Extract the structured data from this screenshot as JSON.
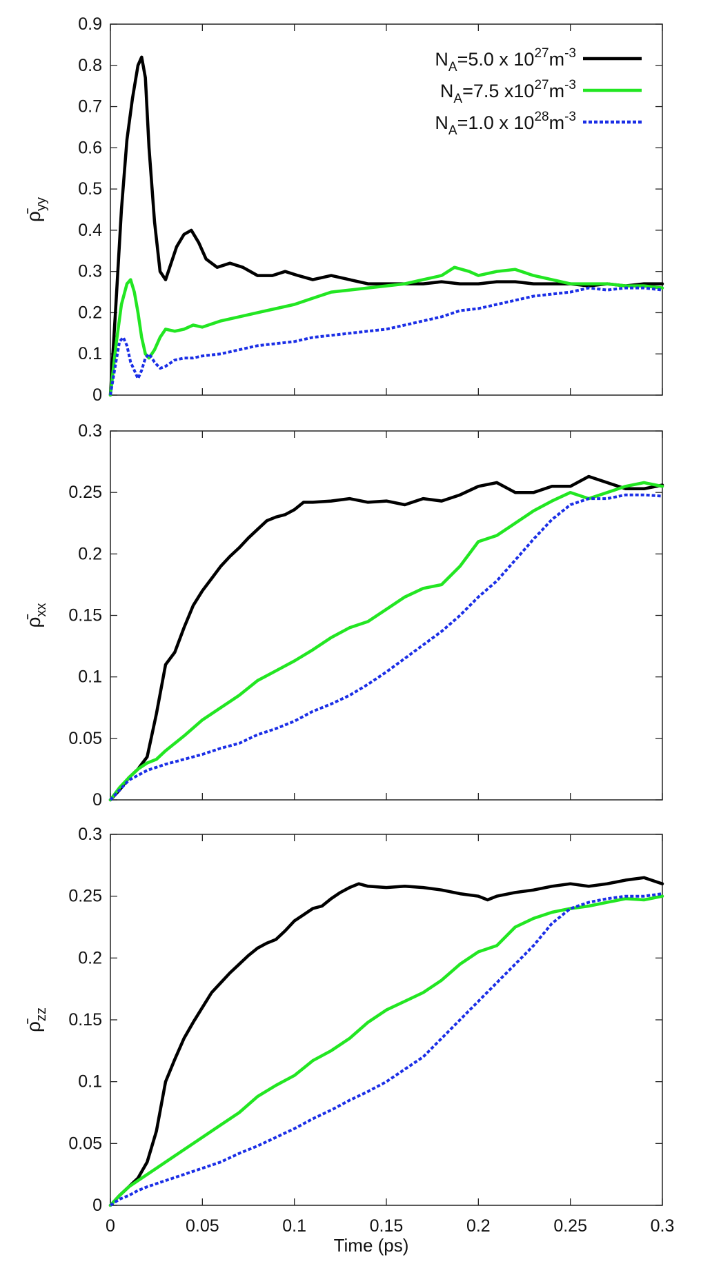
{
  "figure": {
    "xlabel": "Time (ps)"
  },
  "legend": [
    {
      "prefix": "N",
      "sub": "A",
      "mid": "=5.0 x 10",
      "sup": "27",
      "unit": "m",
      "unit_sup": "-3"
    },
    {
      "prefix": "N",
      "sub": "A",
      "mid": "=7.5 x10",
      "sup": "27",
      "unit": "m",
      "unit_sup": "-3"
    },
    {
      "prefix": "N",
      "sub": "A",
      "mid": "=1.0 x 10",
      "sup": "28",
      "unit": "m",
      "unit_sup": "-3"
    }
  ],
  "chart_data": [
    {
      "type": "line",
      "ylabel": "ρ̄yy",
      "ylabel_main": "ρ̄",
      "ylabel_sub": "yy",
      "xlim": [
        0,
        0.3
      ],
      "ylim": [
        0,
        0.9
      ],
      "xticks": [
        0,
        0.05,
        0.1,
        0.15,
        0.2,
        0.25,
        0.3
      ],
      "yticks": [
        "0",
        "0.1",
        "0.2",
        "0.3",
        "0.4",
        "0.5",
        "0.6",
        "0.7",
        "0.8",
        "0.9"
      ],
      "ytick_values": [
        0,
        0.1,
        0.2,
        0.3,
        0.4,
        0.5,
        0.6,
        0.7,
        0.8,
        0.9
      ],
      "legend": "top-right",
      "grid": false,
      "series": [
        {
          "name": "NA=5.0 x 10^27 m^-3",
          "color": "#000000",
          "dash": "solid",
          "x": [
            0,
            0.003,
            0.006,
            0.009,
            0.012,
            0.015,
            0.017,
            0.019,
            0.021,
            0.024,
            0.027,
            0.03,
            0.033,
            0.036,
            0.04,
            0.044,
            0.048,
            0.052,
            0.058,
            0.065,
            0.072,
            0.08,
            0.088,
            0.095,
            0.102,
            0.11,
            0.12,
            0.13,
            0.14,
            0.15,
            0.16,
            0.17,
            0.18,
            0.19,
            0.2,
            0.21,
            0.22,
            0.23,
            0.24,
            0.25,
            0.26,
            0.27,
            0.28,
            0.29,
            0.3
          ],
          "y": [
            0,
            0.22,
            0.45,
            0.62,
            0.72,
            0.8,
            0.82,
            0.77,
            0.6,
            0.42,
            0.3,
            0.28,
            0.32,
            0.36,
            0.39,
            0.4,
            0.37,
            0.33,
            0.31,
            0.32,
            0.31,
            0.29,
            0.29,
            0.3,
            0.29,
            0.28,
            0.29,
            0.28,
            0.27,
            0.27,
            0.27,
            0.27,
            0.275,
            0.27,
            0.27,
            0.275,
            0.275,
            0.27,
            0.27,
            0.27,
            0.265,
            0.27,
            0.265,
            0.27,
            0.27
          ]
        },
        {
          "name": "NA=7.5 x10^27 m^-3",
          "color": "#22e622",
          "dash": "solid",
          "x": [
            0,
            0.003,
            0.006,
            0.009,
            0.011,
            0.013,
            0.015,
            0.017,
            0.019,
            0.021,
            0.024,
            0.027,
            0.03,
            0.035,
            0.04,
            0.045,
            0.05,
            0.06,
            0.07,
            0.08,
            0.09,
            0.1,
            0.11,
            0.12,
            0.13,
            0.14,
            0.15,
            0.16,
            0.17,
            0.18,
            0.187,
            0.195,
            0.2,
            0.21,
            0.22,
            0.23,
            0.24,
            0.25,
            0.26,
            0.27,
            0.28,
            0.29,
            0.3
          ],
          "y": [
            0,
            0.12,
            0.22,
            0.27,
            0.28,
            0.25,
            0.2,
            0.14,
            0.1,
            0.09,
            0.11,
            0.14,
            0.16,
            0.155,
            0.16,
            0.17,
            0.165,
            0.18,
            0.19,
            0.2,
            0.21,
            0.22,
            0.235,
            0.25,
            0.255,
            0.26,
            0.265,
            0.27,
            0.28,
            0.29,
            0.31,
            0.3,
            0.29,
            0.3,
            0.305,
            0.29,
            0.28,
            0.27,
            0.27,
            0.27,
            0.265,
            0.265,
            0.26
          ]
        },
        {
          "name": "NA=1.0 x 10^28 m^-3",
          "color": "#1a2ee6",
          "dash": "dashed",
          "x": [
            0,
            0.003,
            0.005,
            0.007,
            0.009,
            0.011,
            0.013,
            0.015,
            0.017,
            0.019,
            0.021,
            0.024,
            0.027,
            0.03,
            0.035,
            0.04,
            0.045,
            0.05,
            0.06,
            0.07,
            0.08,
            0.09,
            0.1,
            0.11,
            0.12,
            0.13,
            0.14,
            0.15,
            0.16,
            0.17,
            0.18,
            0.19,
            0.2,
            0.21,
            0.22,
            0.23,
            0.24,
            0.25,
            0.26,
            0.27,
            0.28,
            0.29,
            0.3
          ],
          "y": [
            0,
            0.08,
            0.13,
            0.14,
            0.12,
            0.08,
            0.06,
            0.04,
            0.06,
            0.09,
            0.1,
            0.08,
            0.065,
            0.07,
            0.085,
            0.09,
            0.09,
            0.095,
            0.1,
            0.11,
            0.12,
            0.125,
            0.13,
            0.14,
            0.145,
            0.15,
            0.155,
            0.16,
            0.17,
            0.18,
            0.19,
            0.205,
            0.21,
            0.22,
            0.23,
            0.24,
            0.245,
            0.25,
            0.26,
            0.255,
            0.26,
            0.26,
            0.255
          ]
        }
      ]
    },
    {
      "type": "line",
      "ylabel": "ρ̄xx",
      "ylabel_main": "ρ̄",
      "ylabel_sub": "xx",
      "xlim": [
        0,
        0.3
      ],
      "ylim": [
        0,
        0.3
      ],
      "xticks": [
        0,
        0.05,
        0.1,
        0.15,
        0.2,
        0.25,
        0.3
      ],
      "yticks": [
        "0",
        "0.05",
        "0.1",
        "0.15",
        "0.2",
        "0.25",
        "0.3"
      ],
      "ytick_values": [
        0,
        0.05,
        0.1,
        0.15,
        0.2,
        0.25,
        0.3
      ],
      "grid": false,
      "series": [
        {
          "name": "NA=5.0 x 10^27 m^-3",
          "color": "#000000",
          "dash": "solid",
          "x": [
            0,
            0.005,
            0.01,
            0.015,
            0.02,
            0.025,
            0.03,
            0.035,
            0.04,
            0.045,
            0.05,
            0.055,
            0.06,
            0.065,
            0.07,
            0.075,
            0.08,
            0.085,
            0.09,
            0.095,
            0.1,
            0.105,
            0.11,
            0.12,
            0.13,
            0.14,
            0.15,
            0.16,
            0.17,
            0.18,
            0.19,
            0.2,
            0.21,
            0.22,
            0.23,
            0.24,
            0.25,
            0.26,
            0.27,
            0.28,
            0.29,
            0.3
          ],
          "y": [
            0,
            0.008,
            0.018,
            0.025,
            0.035,
            0.07,
            0.11,
            0.12,
            0.14,
            0.158,
            0.17,
            0.18,
            0.19,
            0.198,
            0.205,
            0.213,
            0.22,
            0.227,
            0.23,
            0.232,
            0.236,
            0.242,
            0.242,
            0.243,
            0.245,
            0.242,
            0.243,
            0.24,
            0.245,
            0.243,
            0.248,
            0.255,
            0.258,
            0.25,
            0.25,
            0.255,
            0.255,
            0.263,
            0.258,
            0.253,
            0.253,
            0.256
          ]
        },
        {
          "name": "NA=7.5 x10^27 m^-3",
          "color": "#22e622",
          "dash": "solid",
          "x": [
            0,
            0.005,
            0.01,
            0.015,
            0.02,
            0.025,
            0.03,
            0.04,
            0.05,
            0.06,
            0.07,
            0.08,
            0.09,
            0.1,
            0.11,
            0.12,
            0.13,
            0.14,
            0.15,
            0.16,
            0.17,
            0.18,
            0.19,
            0.2,
            0.21,
            0.22,
            0.23,
            0.24,
            0.25,
            0.26,
            0.27,
            0.28,
            0.29,
            0.3
          ],
          "y": [
            0,
            0.01,
            0.018,
            0.025,
            0.03,
            0.033,
            0.04,
            0.052,
            0.065,
            0.075,
            0.085,
            0.097,
            0.105,
            0.113,
            0.122,
            0.132,
            0.14,
            0.145,
            0.155,
            0.165,
            0.172,
            0.175,
            0.19,
            0.21,
            0.215,
            0.225,
            0.235,
            0.243,
            0.25,
            0.245,
            0.25,
            0.255,
            0.258,
            0.255
          ]
        },
        {
          "name": "NA=1.0 x 10^28 m^-3",
          "color": "#1a2ee6",
          "dash": "dashed",
          "x": [
            0,
            0.005,
            0.01,
            0.015,
            0.02,
            0.03,
            0.04,
            0.05,
            0.06,
            0.07,
            0.08,
            0.09,
            0.1,
            0.11,
            0.12,
            0.13,
            0.14,
            0.15,
            0.16,
            0.17,
            0.18,
            0.19,
            0.2,
            0.21,
            0.22,
            0.23,
            0.24,
            0.25,
            0.26,
            0.27,
            0.28,
            0.29,
            0.3
          ],
          "y": [
            0,
            0.008,
            0.016,
            0.02,
            0.024,
            0.029,
            0.033,
            0.037,
            0.042,
            0.046,
            0.053,
            0.058,
            0.064,
            0.072,
            0.078,
            0.085,
            0.094,
            0.104,
            0.115,
            0.126,
            0.137,
            0.15,
            0.165,
            0.178,
            0.195,
            0.212,
            0.228,
            0.24,
            0.245,
            0.245,
            0.248,
            0.248,
            0.247
          ]
        }
      ]
    },
    {
      "type": "line",
      "ylabel": "ρ̄zz",
      "ylabel_main": "ρ̄",
      "ylabel_sub": "zz",
      "xlabel": "Time (ps)",
      "xlim": [
        0,
        0.3
      ],
      "ylim": [
        0,
        0.3
      ],
      "xticks": [
        0,
        0.05,
        0.1,
        0.15,
        0.2,
        0.25,
        0.3
      ],
      "xticklabels": [
        "0",
        "0.05",
        "0.1",
        "0.15",
        "0.2",
        "0.25",
        "0.3"
      ],
      "yticks": [
        "0",
        "0.05",
        "0.1",
        "0.15",
        "0.2",
        "0.25",
        "0.3"
      ],
      "ytick_values": [
        0,
        0.05,
        0.1,
        0.15,
        0.2,
        0.25,
        0.3
      ],
      "grid": false,
      "series": [
        {
          "name": "NA=5.0 x 10^27 m^-3",
          "color": "#000000",
          "dash": "solid",
          "x": [
            0,
            0.005,
            0.01,
            0.015,
            0.02,
            0.025,
            0.03,
            0.035,
            0.04,
            0.045,
            0.05,
            0.055,
            0.06,
            0.065,
            0.07,
            0.075,
            0.08,
            0.085,
            0.09,
            0.095,
            0.1,
            0.105,
            0.11,
            0.115,
            0.12,
            0.125,
            0.13,
            0.135,
            0.14,
            0.15,
            0.16,
            0.17,
            0.18,
            0.19,
            0.2,
            0.205,
            0.21,
            0.22,
            0.23,
            0.24,
            0.25,
            0.26,
            0.27,
            0.28,
            0.29,
            0.3
          ],
          "y": [
            0,
            0.008,
            0.015,
            0.022,
            0.035,
            0.06,
            0.1,
            0.118,
            0.135,
            0.148,
            0.16,
            0.172,
            0.18,
            0.188,
            0.195,
            0.202,
            0.208,
            0.212,
            0.215,
            0.222,
            0.23,
            0.235,
            0.24,
            0.242,
            0.248,
            0.253,
            0.257,
            0.26,
            0.258,
            0.257,
            0.258,
            0.257,
            0.255,
            0.252,
            0.25,
            0.247,
            0.25,
            0.253,
            0.255,
            0.258,
            0.26,
            0.258,
            0.26,
            0.263,
            0.265,
            0.26
          ]
        },
        {
          "name": "NA=7.5 x10^27 m^-3",
          "color": "#22e622",
          "dash": "solid",
          "x": [
            0,
            0.005,
            0.01,
            0.015,
            0.02,
            0.025,
            0.03,
            0.04,
            0.05,
            0.06,
            0.07,
            0.08,
            0.09,
            0.1,
            0.11,
            0.12,
            0.13,
            0.14,
            0.15,
            0.16,
            0.17,
            0.18,
            0.19,
            0.2,
            0.21,
            0.22,
            0.23,
            0.24,
            0.25,
            0.26,
            0.27,
            0.28,
            0.29,
            0.3
          ],
          "y": [
            0,
            0.008,
            0.015,
            0.02,
            0.025,
            0.03,
            0.035,
            0.045,
            0.055,
            0.065,
            0.075,
            0.088,
            0.097,
            0.105,
            0.117,
            0.125,
            0.135,
            0.148,
            0.158,
            0.165,
            0.172,
            0.182,
            0.195,
            0.205,
            0.21,
            0.225,
            0.232,
            0.237,
            0.24,
            0.242,
            0.245,
            0.248,
            0.247,
            0.25
          ]
        },
        {
          "name": "NA=1.0 x 10^28 m^-3",
          "color": "#1a2ee6",
          "dash": "dashed",
          "x": [
            0,
            0.005,
            0.01,
            0.015,
            0.02,
            0.03,
            0.04,
            0.05,
            0.06,
            0.07,
            0.08,
            0.09,
            0.1,
            0.11,
            0.12,
            0.13,
            0.14,
            0.15,
            0.16,
            0.17,
            0.18,
            0.19,
            0.2,
            0.21,
            0.22,
            0.23,
            0.24,
            0.25,
            0.26,
            0.27,
            0.28,
            0.29,
            0.3
          ],
          "y": [
            0,
            0.005,
            0.008,
            0.012,
            0.015,
            0.02,
            0.025,
            0.03,
            0.035,
            0.042,
            0.048,
            0.055,
            0.062,
            0.07,
            0.077,
            0.085,
            0.092,
            0.1,
            0.11,
            0.12,
            0.135,
            0.15,
            0.165,
            0.18,
            0.195,
            0.21,
            0.228,
            0.24,
            0.245,
            0.248,
            0.25,
            0.25,
            0.252
          ]
        }
      ]
    }
  ]
}
